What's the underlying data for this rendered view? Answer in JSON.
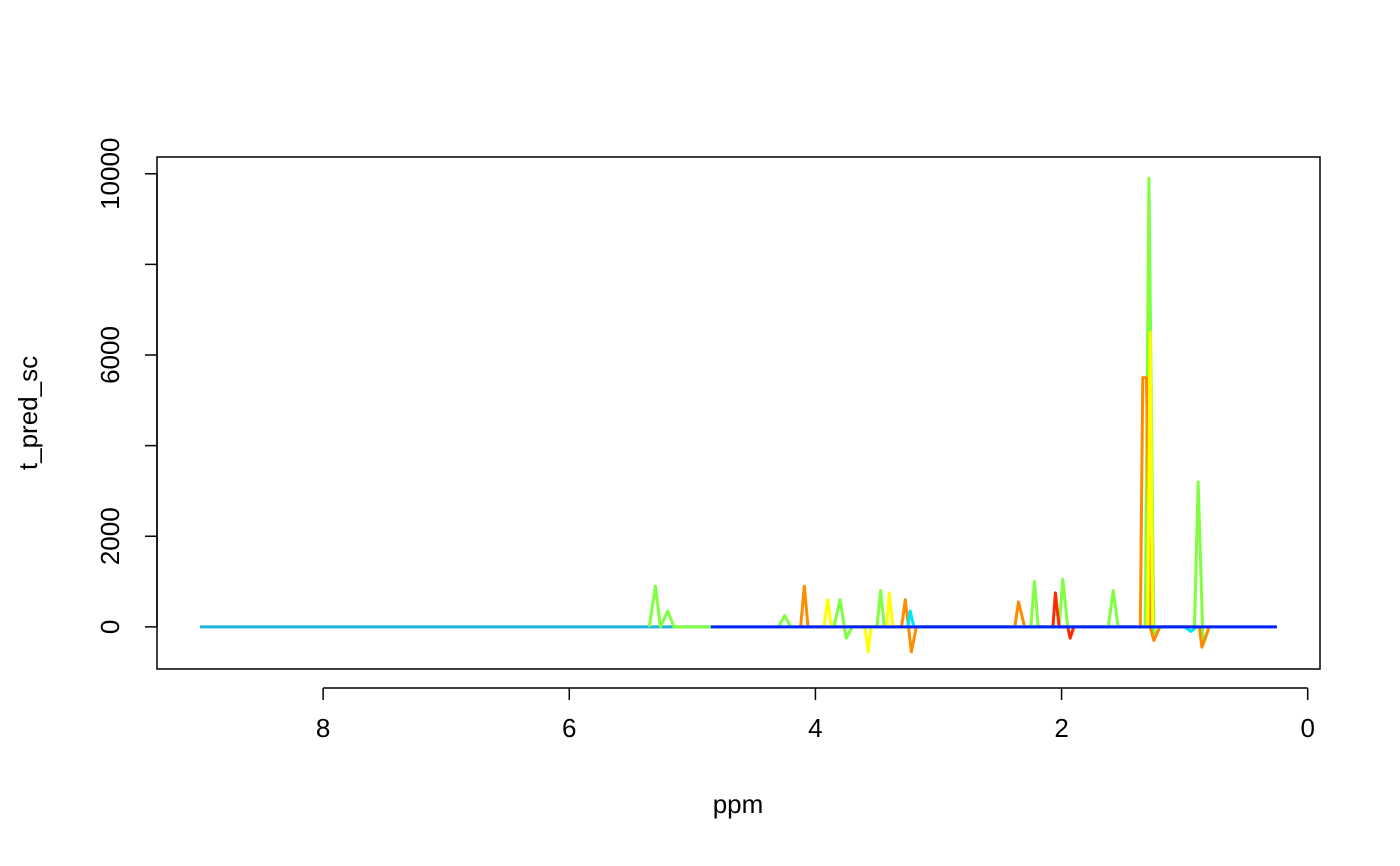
{
  "chart_data": {
    "type": "line",
    "xlabel": "ppm",
    "ylabel": "t_pred_sc",
    "xlim": [
      9.35,
      -0.1
    ],
    "xticks": [
      8,
      6,
      4,
      2,
      0
    ],
    "ylim": [
      -930,
      10370
    ],
    "yticks": [
      0,
      2000,
      6000,
      10000
    ],
    "yticks_unlabeled": [
      4000,
      8000
    ],
    "line_width": 3,
    "series": [
      {
        "color": "#1ab3d9",
        "x": [
          9.0,
          4.85
        ],
        "values": [
          0,
          0
        ]
      },
      {
        "color": "#80ff40",
        "x": [
          5.35,
          5.3,
          5.26,
          5.2,
          5.15,
          4.3,
          4.25,
          4.2,
          3.85,
          3.8,
          3.75,
          3.7,
          3.5,
          3.47,
          3.44,
          2.25,
          2.22,
          2.19,
          2.02,
          1.99,
          1.95,
          1.62,
          1.58,
          1.54,
          1.32,
          1.29,
          1.25,
          1.2,
          0.92,
          0.89,
          0.85,
          0.8,
          0.3
        ],
        "values": [
          0,
          900,
          0,
          350,
          0,
          0,
          250,
          0,
          0,
          600,
          -250,
          0,
          0,
          800,
          0,
          0,
          1000,
          0,
          0,
          1050,
          0,
          0,
          800,
          0,
          0,
          9900,
          -200,
          0,
          0,
          3200,
          -400,
          0,
          0
        ]
      },
      {
        "color": "#ff8c00",
        "x": [
          4.12,
          4.09,
          4.06,
          3.3,
          3.27,
          3.22,
          3.18,
          2.38,
          2.35,
          2.3,
          1.36,
          1.34,
          1.31,
          1.28,
          1.25,
          1.2,
          0.88,
          0.86,
          0.8
        ],
        "values": [
          0,
          900,
          0,
          0,
          600,
          -550,
          0,
          0,
          550,
          0,
          0,
          5500,
          5500,
          0,
          -300,
          0,
          0,
          -450,
          0
        ]
      },
      {
        "color": "#ffff00",
        "x": [
          3.93,
          3.9,
          3.87,
          3.6,
          3.57,
          3.55,
          3.42,
          3.4,
          3.37,
          1.3,
          1.28,
          1.26
        ],
        "values": [
          0,
          600,
          0,
          0,
          -550,
          0,
          0,
          750,
          0,
          0,
          6500,
          0
        ]
      },
      {
        "color": "#ff2a00",
        "x": [
          2.07,
          2.05,
          2.02,
          1.95,
          1.93,
          1.9
        ],
        "values": [
          0,
          750,
          0,
          0,
          -250,
          0
        ]
      },
      {
        "color": "#00e5ff",
        "x": [
          3.25,
          3.23,
          3.2,
          1.0,
          0.95,
          0.9
        ],
        "values": [
          0,
          350,
          0,
          0,
          -100,
          0
        ]
      },
      {
        "color": "#0022ff",
        "x": [
          4.85,
          0.25
        ],
        "values": [
          0,
          0
        ]
      }
    ]
  }
}
